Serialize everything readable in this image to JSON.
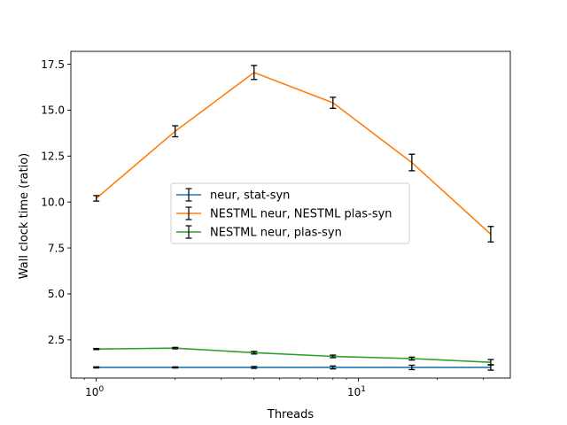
{
  "chart_data": {
    "type": "line",
    "xlabel": "Threads",
    "ylabel": "Wall clock time (ratio)",
    "xscale": "log",
    "xlim": [
      0.8,
      38
    ],
    "ylim": [
      0.42,
      18.2
    ],
    "x_ticks": [
      {
        "value": 1,
        "base": "10",
        "exp": "0"
      },
      {
        "value": 10,
        "base": "10",
        "exp": "1"
      }
    ],
    "y_ticks": [
      {
        "value": 2.5,
        "label": "2.5"
      },
      {
        "value": 5.0,
        "label": "5.0"
      },
      {
        "value": 7.5,
        "label": "7.5"
      },
      {
        "value": 10.0,
        "label": "10.0"
      },
      {
        "value": 12.5,
        "label": "12.5"
      },
      {
        "value": 15.0,
        "label": "15.0"
      },
      {
        "value": 17.5,
        "label": "17.5"
      }
    ],
    "grid": false,
    "legend_position": "center",
    "x": [
      1,
      2,
      4,
      8,
      16,
      32
    ],
    "series": [
      {
        "name": "neur, stat-syn",
        "color": "#1f77b4",
        "values": [
          1.0,
          1.0,
          1.0,
          1.0,
          1.0,
          1.0
        ],
        "errors": [
          0.03,
          0.03,
          0.05,
          0.08,
          0.12,
          0.15
        ]
      },
      {
        "name": "NESTML neur, NESTML plas-syn",
        "color": "#ff7f0e",
        "values": [
          10.2,
          13.85,
          17.05,
          15.4,
          12.15,
          8.25
        ],
        "errors": [
          0.15,
          0.3,
          0.38,
          0.3,
          0.45,
          0.42
        ]
      },
      {
        "name": "NESTML neur, plas-syn",
        "color": "#2ca02c",
        "values": [
          2.0,
          2.05,
          1.8,
          1.6,
          1.48,
          1.28
        ],
        "errors": [
          0.03,
          0.04,
          0.07,
          0.07,
          0.08,
          0.15
        ]
      }
    ]
  }
}
